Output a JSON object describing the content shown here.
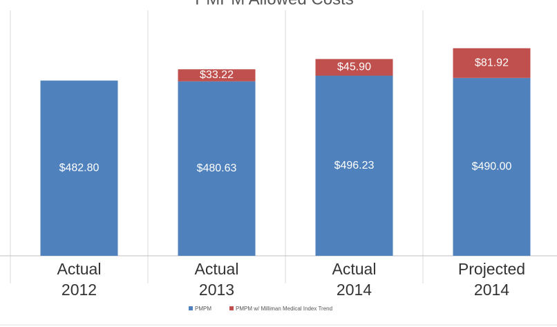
{
  "chart_data": {
    "type": "stacked_bar",
    "title": "PMPM Allowed Costs",
    "categories": [
      "Actual 2012",
      "Actual 2013",
      "Actual 2014",
      "Projected 2014"
    ],
    "series": [
      {
        "name": "PMPM",
        "color": "#4f81bd",
        "values": [
          482.8,
          480.63,
          496.23,
          490.0
        ],
        "value_labels": [
          "$482.80",
          "$480.63",
          "$496.23",
          "$490.00"
        ]
      },
      {
        "name": "PMPM w/ Milliman Medical Index Trend",
        "color": "#c0504d",
        "values": [
          null,
          33.22,
          45.9,
          81.92
        ],
        "value_labels": [
          null,
          "$33.22",
          "$45.90",
          "$81.92"
        ]
      }
    ],
    "ylim": [
      0,
      600
    ],
    "legend": "bottom"
  }
}
